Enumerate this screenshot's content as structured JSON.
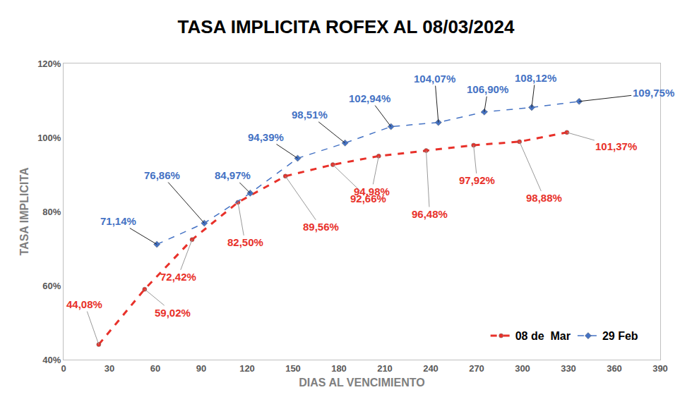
{
  "chart_data": {
    "type": "line",
    "title": "TASA IMPLICITA ROFEX AL 08/03/2024",
    "xlabel": "DIAS AL VENCIMIENTO",
    "ylabel": "TASA IMPLICITA",
    "xlim": [
      0,
      390
    ],
    "xticks": [
      0,
      30,
      60,
      90,
      120,
      150,
      180,
      210,
      240,
      270,
      300,
      330,
      360,
      390
    ],
    "ylim": [
      40,
      120
    ],
    "yticks": [
      {
        "value": 40,
        "label": "40%"
      },
      {
        "value": 60,
        "label": "60%"
      },
      {
        "value": 80,
        "label": "80%"
      },
      {
        "value": 100,
        "label": "100%"
      },
      {
        "value": 120,
        "label": "120%"
      }
    ],
    "grid": false,
    "legend": "lower right",
    "data_labels": true,
    "series": [
      {
        "name": "08 de  Mar",
        "color": "#e8312a",
        "marker": "circle",
        "line_style": "dash",
        "x": [
          23,
          53,
          84,
          114,
          145,
          176,
          206,
          237,
          268,
          298,
          329
        ],
        "values": [
          44.08,
          59.02,
          72.42,
          82.5,
          89.56,
          92.66,
          94.98,
          96.48,
          97.92,
          98.88,
          101.37
        ],
        "value_labels": [
          "44,08%",
          "59,02%",
          "72,42%",
          "82,50%",
          "89,56%",
          "92,66%",
          "94,98%",
          "96,48%",
          "97,92%",
          "98,88%",
          "101,37%"
        ]
      },
      {
        "name": "29 Feb",
        "color": "#4472c4",
        "marker": "diamond",
        "line_style": "dash",
        "x": [
          61,
          92,
          122,
          153,
          184,
          214,
          245,
          275,
          306,
          337
        ],
        "values": [
          71.14,
          76.86,
          84.97,
          94.39,
          98.51,
          102.94,
          104.07,
          106.9,
          108.12,
          109.75
        ],
        "value_labels": [
          "71,14%",
          "76,86%",
          "84,97%",
          "94,39%",
          "98,51%",
          "102,94%",
          "104,07%",
          "106,90%",
          "108,12%",
          "109,75%"
        ]
      }
    ]
  }
}
